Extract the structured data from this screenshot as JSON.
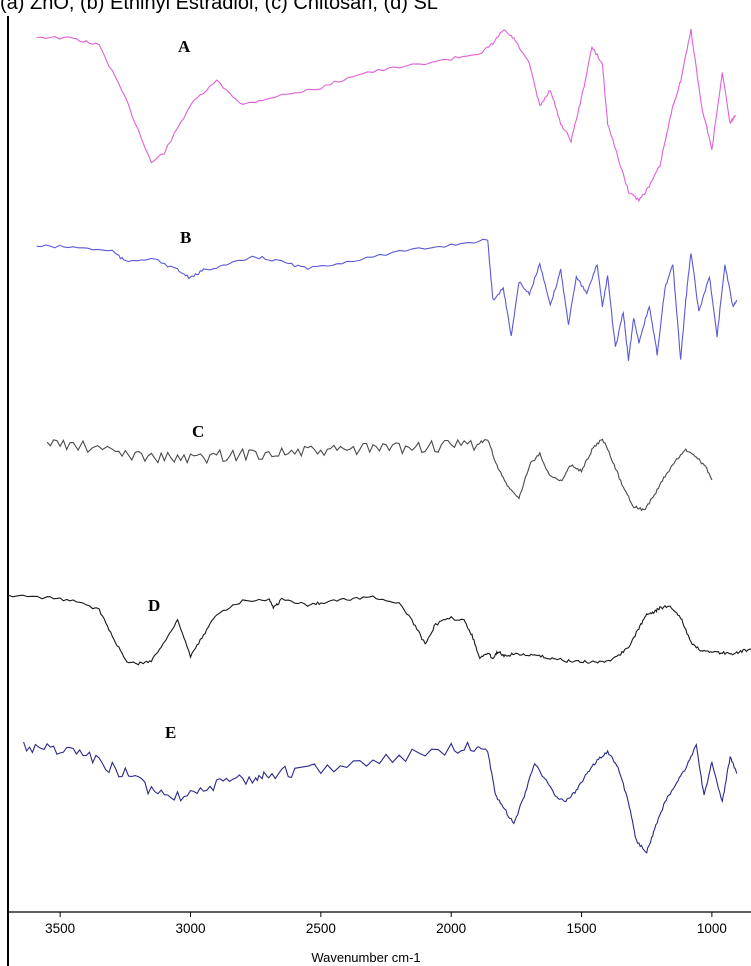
{
  "caption": "(a) ZnO, (b) Ethinyl Estradiol, (c) Chitosan, (d) SL",
  "chart_data": {
    "type": "line",
    "xlabel": "Wavenumber cm-1",
    "xlim": [
      3700,
      850
    ],
    "xticks": [
      3500,
      3000,
      2500,
      2000,
      1500,
      1000
    ],
    "xtick_labels": [
      "3500",
      "3000",
      "2500",
      "2000",
      "1500",
      "1000"
    ],
    "y_axis_shown": false,
    "grid": false,
    "series": [
      {
        "name": "A",
        "color": "#e060d8",
        "points": [
          [
            3590,
            0.04
          ],
          [
            3450,
            0.05
          ],
          [
            3350,
            0.09
          ],
          [
            3250,
            0.4
          ],
          [
            3150,
            0.78
          ],
          [
            3100,
            0.72
          ],
          [
            3000,
            0.44
          ],
          [
            2900,
            0.3
          ],
          [
            2800,
            0.44
          ],
          [
            2700,
            0.4
          ],
          [
            2500,
            0.34
          ],
          [
            2360,
            0.26
          ],
          [
            2200,
            0.22
          ],
          [
            2000,
            0.17
          ],
          [
            1880,
            0.13
          ],
          [
            1840,
            0.08
          ],
          [
            1800,
            0.0
          ],
          [
            1760,
            0.05
          ],
          [
            1700,
            0.2
          ],
          [
            1660,
            0.45
          ],
          [
            1620,
            0.35
          ],
          [
            1580,
            0.55
          ],
          [
            1540,
            0.65
          ],
          [
            1500,
            0.4
          ],
          [
            1460,
            0.1
          ],
          [
            1420,
            0.2
          ],
          [
            1400,
            0.55
          ],
          [
            1360,
            0.75
          ],
          [
            1320,
            0.95
          ],
          [
            1280,
            1.0
          ],
          [
            1240,
            0.92
          ],
          [
            1200,
            0.8
          ],
          [
            1150,
            0.45
          ],
          [
            1120,
            0.3
          ],
          [
            1080,
            0.0
          ],
          [
            1040,
            0.45
          ],
          [
            1000,
            0.7
          ],
          [
            960,
            0.25
          ],
          [
            930,
            0.55
          ],
          [
            910,
            0.5
          ]
        ]
      },
      {
        "name": "B",
        "color": "#5a5ad6",
        "points": [
          [
            3590,
            0.05
          ],
          [
            3450,
            0.06
          ],
          [
            3300,
            0.09
          ],
          [
            3250,
            0.18
          ],
          [
            3150,
            0.15
          ],
          [
            3050,
            0.25
          ],
          [
            3000,
            0.32
          ],
          [
            2950,
            0.25
          ],
          [
            2850,
            0.2
          ],
          [
            2750,
            0.14
          ],
          [
            2650,
            0.18
          ],
          [
            2550,
            0.24
          ],
          [
            2400,
            0.18
          ],
          [
            2200,
            0.1
          ],
          [
            2000,
            0.04
          ],
          [
            1860,
            0.0
          ],
          [
            1840,
            0.5
          ],
          [
            1800,
            0.4
          ],
          [
            1770,
            0.8
          ],
          [
            1740,
            0.35
          ],
          [
            1700,
            0.45
          ],
          [
            1660,
            0.2
          ],
          [
            1620,
            0.55
          ],
          [
            1580,
            0.25
          ],
          [
            1550,
            0.7
          ],
          [
            1520,
            0.3
          ],
          [
            1480,
            0.45
          ],
          [
            1440,
            0.2
          ],
          [
            1420,
            0.55
          ],
          [
            1400,
            0.3
          ],
          [
            1370,
            0.9
          ],
          [
            1340,
            0.6
          ],
          [
            1320,
            1.0
          ],
          [
            1300,
            0.65
          ],
          [
            1280,
            0.85
          ],
          [
            1240,
            0.55
          ],
          [
            1210,
            0.95
          ],
          [
            1180,
            0.4
          ],
          [
            1150,
            0.2
          ],
          [
            1120,
            1.0
          ],
          [
            1100,
            0.5
          ],
          [
            1080,
            0.1
          ],
          [
            1050,
            0.6
          ],
          [
            1010,
            0.3
          ],
          [
            980,
            0.8
          ],
          [
            950,
            0.2
          ],
          [
            920,
            0.55
          ],
          [
            905,
            0.5
          ]
        ]
      },
      {
        "name": "C",
        "color": "#4a4a4a",
        "points": [
          [
            3550,
            0.1
          ],
          [
            3450,
            0.14
          ],
          [
            3300,
            0.22
          ],
          [
            3200,
            0.28
          ],
          [
            3100,
            0.3
          ],
          [
            3000,
            0.32
          ],
          [
            2900,
            0.28
          ],
          [
            2800,
            0.26
          ],
          [
            2700,
            0.24
          ],
          [
            2600,
            0.23
          ],
          [
            2500,
            0.22
          ],
          [
            2400,
            0.2
          ],
          [
            2300,
            0.18
          ],
          [
            2200,
            0.17
          ],
          [
            2100,
            0.16
          ],
          [
            2000,
            0.15
          ],
          [
            1900,
            0.12
          ],
          [
            1860,
            0.06
          ],
          [
            1820,
            0.45
          ],
          [
            1780,
            0.7
          ],
          [
            1740,
            0.85
          ],
          [
            1700,
            0.4
          ],
          [
            1660,
            0.25
          ],
          [
            1620,
            0.55
          ],
          [
            1580,
            0.62
          ],
          [
            1540,
            0.4
          ],
          [
            1500,
            0.48
          ],
          [
            1460,
            0.2
          ],
          [
            1420,
            0.05
          ],
          [
            1380,
            0.35
          ],
          [
            1340,
            0.7
          ],
          [
            1300,
            0.95
          ],
          [
            1260,
            1.0
          ],
          [
            1220,
            0.8
          ],
          [
            1180,
            0.55
          ],
          [
            1140,
            0.35
          ],
          [
            1100,
            0.2
          ],
          [
            1060,
            0.28
          ],
          [
            1020,
            0.45
          ],
          [
            1000,
            0.6
          ]
        ]
      },
      {
        "name": "D",
        "color": "#1a1a1a",
        "points": [
          [
            3700,
            0.05
          ],
          [
            3550,
            0.08
          ],
          [
            3450,
            0.12
          ],
          [
            3350,
            0.25
          ],
          [
            3300,
            0.6
          ],
          [
            3250,
            0.95
          ],
          [
            3200,
            1.0
          ],
          [
            3150,
            0.95
          ],
          [
            3100,
            0.7
          ],
          [
            3050,
            0.38
          ],
          [
            3000,
            0.9
          ],
          [
            2950,
            0.6
          ],
          [
            2900,
            0.3
          ],
          [
            2800,
            0.12
          ],
          [
            2700,
            0.1
          ],
          [
            2680,
            0.22
          ],
          [
            2650,
            0.1
          ],
          [
            2550,
            0.18
          ],
          [
            2500,
            0.15
          ],
          [
            2400,
            0.1
          ],
          [
            2300,
            0.07
          ],
          [
            2200,
            0.15
          ],
          [
            2150,
            0.4
          ],
          [
            2100,
            0.72
          ],
          [
            2060,
            0.45
          ],
          [
            2000,
            0.36
          ],
          [
            1950,
            0.4
          ],
          [
            1920,
            0.6
          ],
          [
            1890,
            0.92
          ],
          [
            1860,
            0.85
          ],
          [
            1840,
            0.92
          ],
          [
            1820,
            0.82
          ],
          [
            1790,
            0.9
          ],
          [
            1760,
            0.85
          ],
          [
            1700,
            0.88
          ],
          [
            1650,
            0.9
          ],
          [
            1600,
            0.93
          ],
          [
            1550,
            0.96
          ],
          [
            1500,
            0.97
          ],
          [
            1450,
            0.97
          ],
          [
            1400,
            0.96
          ],
          [
            1360,
            0.88
          ],
          [
            1320,
            0.78
          ],
          [
            1280,
            0.5
          ],
          [
            1250,
            0.3
          ],
          [
            1220,
            0.28
          ],
          [
            1200,
            0.22
          ],
          [
            1160,
            0.2
          ],
          [
            1120,
            0.35
          ],
          [
            1080,
            0.7
          ],
          [
            1040,
            0.82
          ],
          [
            1000,
            0.84
          ],
          [
            960,
            0.84
          ],
          [
            920,
            0.86
          ],
          [
            880,
            0.82
          ],
          [
            830,
            0.78
          ],
          [
            800,
            0.72
          ]
        ]
      },
      {
        "name": "E",
        "color": "#2a2a8a",
        "points": [
          [
            3640,
            0.05
          ],
          [
            3550,
            0.08
          ],
          [
            3450,
            0.1
          ],
          [
            3350,
            0.2
          ],
          [
            3250,
            0.3
          ],
          [
            3150,
            0.45
          ],
          [
            3050,
            0.5
          ],
          [
            2950,
            0.42
          ],
          [
            2850,
            0.38
          ],
          [
            2750,
            0.33
          ],
          [
            2700,
            0.3
          ],
          [
            2600,
            0.28
          ],
          [
            2400,
            0.22
          ],
          [
            2200,
            0.15
          ],
          [
            2000,
            0.08
          ],
          [
            1900,
            0.05
          ],
          [
            1860,
            0.1
          ],
          [
            1830,
            0.5
          ],
          [
            1800,
            0.6
          ],
          [
            1760,
            0.75
          ],
          [
            1720,
            0.5
          ],
          [
            1680,
            0.2
          ],
          [
            1640,
            0.35
          ],
          [
            1600,
            0.5
          ],
          [
            1560,
            0.55
          ],
          [
            1520,
            0.45
          ],
          [
            1480,
            0.3
          ],
          [
            1440,
            0.18
          ],
          [
            1400,
            0.1
          ],
          [
            1360,
            0.25
          ],
          [
            1320,
            0.55
          ],
          [
            1290,
            0.9
          ],
          [
            1250,
            1.0
          ],
          [
            1220,
            0.8
          ],
          [
            1180,
            0.55
          ],
          [
            1140,
            0.4
          ],
          [
            1100,
            0.25
          ],
          [
            1060,
            0.05
          ],
          [
            1030,
            0.5
          ],
          [
            1000,
            0.2
          ],
          [
            960,
            0.55
          ],
          [
            930,
            0.15
          ],
          [
            905,
            0.3
          ]
        ]
      }
    ]
  }
}
